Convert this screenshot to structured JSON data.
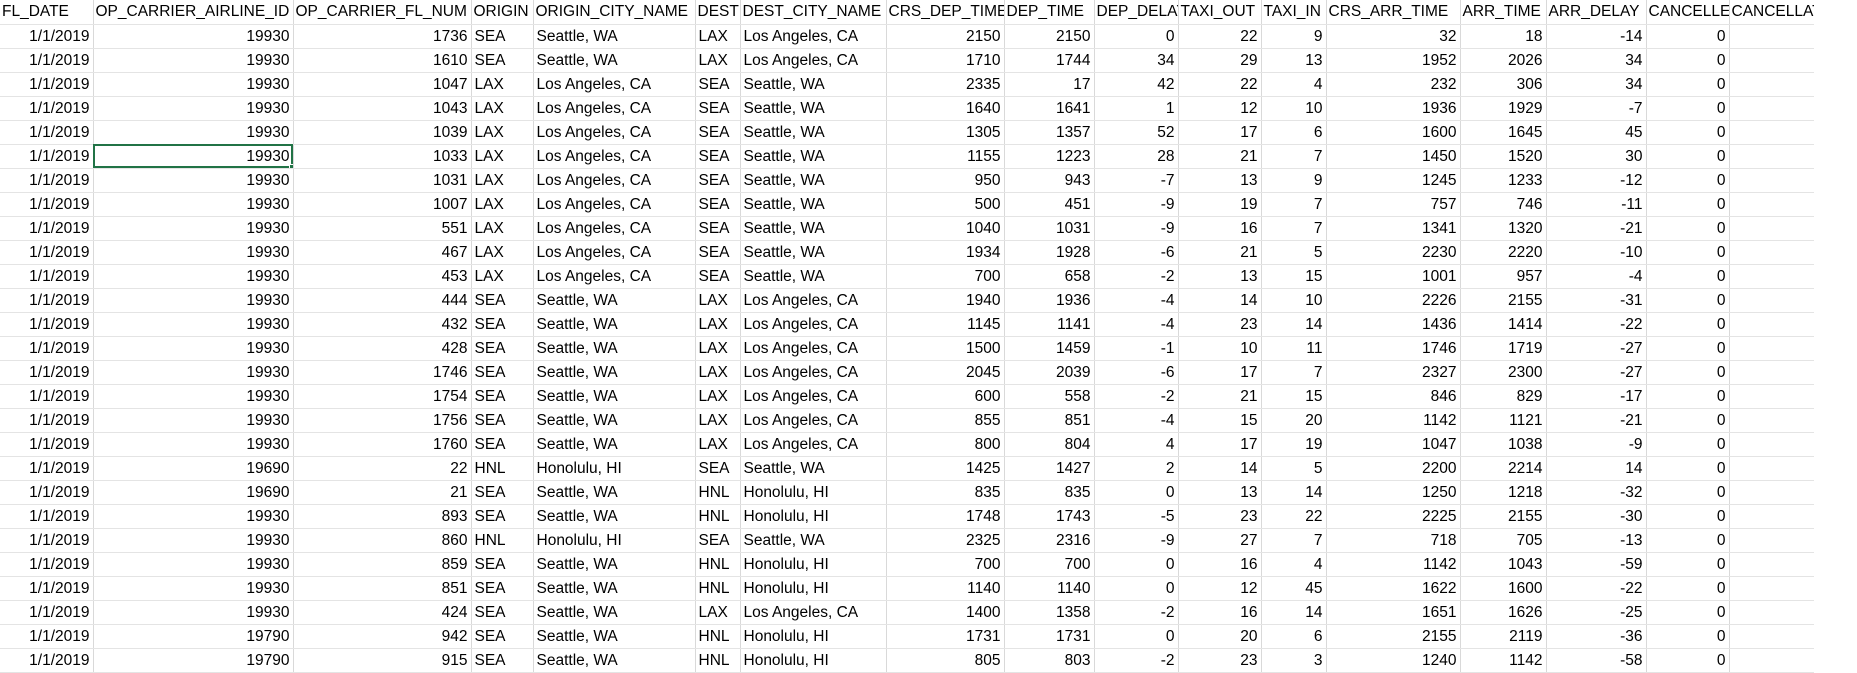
{
  "sheet": {
    "columns": [
      "FL_DATE",
      "OP_CARRIER_AIRLINE_ID",
      "OP_CARRIER_FL_NUM",
      "ORIGIN",
      "ORIGIN_CITY_NAME",
      "DEST",
      "DEST_CITY_NAME",
      "CRS_DEP_TIME",
      "DEP_TIME",
      "DEP_DELAY",
      "TAXI_OUT",
      "TAXI_IN",
      "CRS_ARR_TIME",
      "ARR_TIME",
      "ARR_DELAY",
      "CANCELLED",
      "CANCELLATION"
    ],
    "selected_cell": {
      "row": 5,
      "col": 1
    },
    "rows": [
      [
        "1/1/2019",
        "19930",
        "1736",
        "SEA",
        "Seattle, WA",
        "LAX",
        "Los Angeles, CA",
        "2150",
        "2150",
        "0",
        "22",
        "9",
        "32",
        "18",
        "-14",
        "0",
        ""
      ],
      [
        "1/1/2019",
        "19930",
        "1610",
        "SEA",
        "Seattle, WA",
        "LAX",
        "Los Angeles, CA",
        "1710",
        "1744",
        "34",
        "29",
        "13",
        "1952",
        "2026",
        "34",
        "0",
        ""
      ],
      [
        "1/1/2019",
        "19930",
        "1047",
        "LAX",
        "Los Angeles, CA",
        "SEA",
        "Seattle, WA",
        "2335",
        "17",
        "42",
        "22",
        "4",
        "232",
        "306",
        "34",
        "0",
        ""
      ],
      [
        "1/1/2019",
        "19930",
        "1043",
        "LAX",
        "Los Angeles, CA",
        "SEA",
        "Seattle, WA",
        "1640",
        "1641",
        "1",
        "12",
        "10",
        "1936",
        "1929",
        "-7",
        "0",
        ""
      ],
      [
        "1/1/2019",
        "19930",
        "1039",
        "LAX",
        "Los Angeles, CA",
        "SEA",
        "Seattle, WA",
        "1305",
        "1357",
        "52",
        "17",
        "6",
        "1600",
        "1645",
        "45",
        "0",
        ""
      ],
      [
        "1/1/2019",
        "19930",
        "1033",
        "LAX",
        "Los Angeles, CA",
        "SEA",
        "Seattle, WA",
        "1155",
        "1223",
        "28",
        "21",
        "7",
        "1450",
        "1520",
        "30",
        "0",
        ""
      ],
      [
        "1/1/2019",
        "19930",
        "1031",
        "LAX",
        "Los Angeles, CA",
        "SEA",
        "Seattle, WA",
        "950",
        "943",
        "-7",
        "13",
        "9",
        "1245",
        "1233",
        "-12",
        "0",
        ""
      ],
      [
        "1/1/2019",
        "19930",
        "1007",
        "LAX",
        "Los Angeles, CA",
        "SEA",
        "Seattle, WA",
        "500",
        "451",
        "-9",
        "19",
        "7",
        "757",
        "746",
        "-11",
        "0",
        ""
      ],
      [
        "1/1/2019",
        "19930",
        "551",
        "LAX",
        "Los Angeles, CA",
        "SEA",
        "Seattle, WA",
        "1040",
        "1031",
        "-9",
        "16",
        "7",
        "1341",
        "1320",
        "-21",
        "0",
        ""
      ],
      [
        "1/1/2019",
        "19930",
        "467",
        "LAX",
        "Los Angeles, CA",
        "SEA",
        "Seattle, WA",
        "1934",
        "1928",
        "-6",
        "21",
        "5",
        "2230",
        "2220",
        "-10",
        "0",
        ""
      ],
      [
        "1/1/2019",
        "19930",
        "453",
        "LAX",
        "Los Angeles, CA",
        "SEA",
        "Seattle, WA",
        "700",
        "658",
        "-2",
        "13",
        "15",
        "1001",
        "957",
        "-4",
        "0",
        ""
      ],
      [
        "1/1/2019",
        "19930",
        "444",
        "SEA",
        "Seattle, WA",
        "LAX",
        "Los Angeles, CA",
        "1940",
        "1936",
        "-4",
        "14",
        "10",
        "2226",
        "2155",
        "-31",
        "0",
        ""
      ],
      [
        "1/1/2019",
        "19930",
        "432",
        "SEA",
        "Seattle, WA",
        "LAX",
        "Los Angeles, CA",
        "1145",
        "1141",
        "-4",
        "23",
        "14",
        "1436",
        "1414",
        "-22",
        "0",
        ""
      ],
      [
        "1/1/2019",
        "19930",
        "428",
        "SEA",
        "Seattle, WA",
        "LAX",
        "Los Angeles, CA",
        "1500",
        "1459",
        "-1",
        "10",
        "11",
        "1746",
        "1719",
        "-27",
        "0",
        ""
      ],
      [
        "1/1/2019",
        "19930",
        "1746",
        "SEA",
        "Seattle, WA",
        "LAX",
        "Los Angeles, CA",
        "2045",
        "2039",
        "-6",
        "17",
        "7",
        "2327",
        "2300",
        "-27",
        "0",
        ""
      ],
      [
        "1/1/2019",
        "19930",
        "1754",
        "SEA",
        "Seattle, WA",
        "LAX",
        "Los Angeles, CA",
        "600",
        "558",
        "-2",
        "21",
        "15",
        "846",
        "829",
        "-17",
        "0",
        ""
      ],
      [
        "1/1/2019",
        "19930",
        "1756",
        "SEA",
        "Seattle, WA",
        "LAX",
        "Los Angeles, CA",
        "855",
        "851",
        "-4",
        "15",
        "20",
        "1142",
        "1121",
        "-21",
        "0",
        ""
      ],
      [
        "1/1/2019",
        "19930",
        "1760",
        "SEA",
        "Seattle, WA",
        "LAX",
        "Los Angeles, CA",
        "800",
        "804",
        "4",
        "17",
        "19",
        "1047",
        "1038",
        "-9",
        "0",
        ""
      ],
      [
        "1/1/2019",
        "19690",
        "22",
        "HNL",
        "Honolulu, HI",
        "SEA",
        "Seattle, WA",
        "1425",
        "1427",
        "2",
        "14",
        "5",
        "2200",
        "2214",
        "14",
        "0",
        ""
      ],
      [
        "1/1/2019",
        "19690",
        "21",
        "SEA",
        "Seattle, WA",
        "HNL",
        "Honolulu, HI",
        "835",
        "835",
        "0",
        "13",
        "14",
        "1250",
        "1218",
        "-32",
        "0",
        ""
      ],
      [
        "1/1/2019",
        "19930",
        "893",
        "SEA",
        "Seattle, WA",
        "HNL",
        "Honolulu, HI",
        "1748",
        "1743",
        "-5",
        "23",
        "22",
        "2225",
        "2155",
        "-30",
        "0",
        ""
      ],
      [
        "1/1/2019",
        "19930",
        "860",
        "HNL",
        "Honolulu, HI",
        "SEA",
        "Seattle, WA",
        "2325",
        "2316",
        "-9",
        "27",
        "7",
        "718",
        "705",
        "-13",
        "0",
        ""
      ],
      [
        "1/1/2019",
        "19930",
        "859",
        "SEA",
        "Seattle, WA",
        "HNL",
        "Honolulu, HI",
        "700",
        "700",
        "0",
        "16",
        "4",
        "1142",
        "1043",
        "-59",
        "0",
        ""
      ],
      [
        "1/1/2019",
        "19930",
        "851",
        "SEA",
        "Seattle, WA",
        "HNL",
        "Honolulu, HI",
        "1140",
        "1140",
        "0",
        "12",
        "45",
        "1622",
        "1600",
        "-22",
        "0",
        ""
      ],
      [
        "1/1/2019",
        "19930",
        "424",
        "SEA",
        "Seattle, WA",
        "LAX",
        "Los Angeles, CA",
        "1400",
        "1358",
        "-2",
        "16",
        "14",
        "1651",
        "1626",
        "-25",
        "0",
        ""
      ],
      [
        "1/1/2019",
        "19790",
        "942",
        "SEA",
        "Seattle, WA",
        "HNL",
        "Honolulu, HI",
        "1731",
        "1731",
        "0",
        "20",
        "6",
        "2155",
        "2119",
        "-36",
        "0",
        ""
      ],
      [
        "1/1/2019",
        "19790",
        "915",
        "SEA",
        "Seattle, WA",
        "HNL",
        "Honolulu, HI",
        "805",
        "803",
        "-2",
        "23",
        "3",
        "1240",
        "1142",
        "-58",
        "0",
        ""
      ]
    ]
  }
}
